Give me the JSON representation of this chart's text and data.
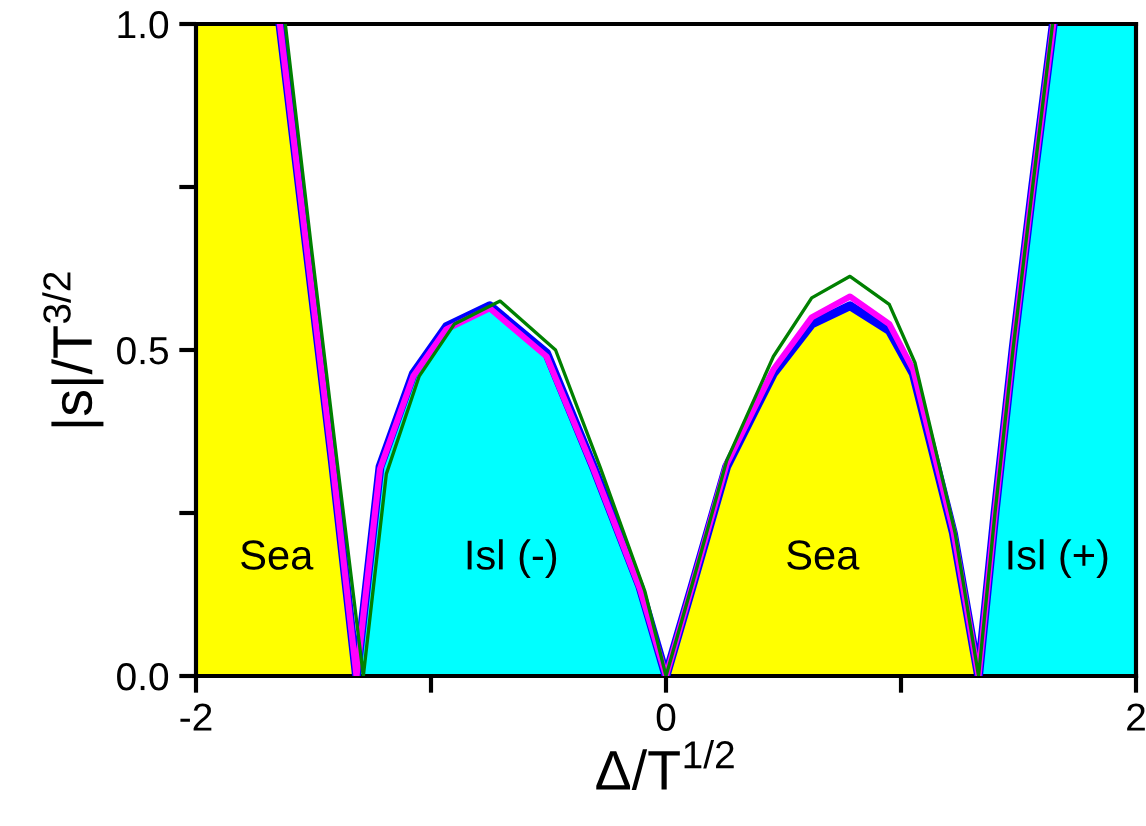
{
  "chart_data": {
    "type": "line",
    "xlabel": "Δ/T$^{1/2}$",
    "ylabel": "|s|/T$^{3/2}$",
    "xlim": [
      -2,
      2
    ],
    "ylim": [
      0,
      1
    ],
    "xticks": [
      -2,
      {
        "value": -1,
        "label": null
      },
      0,
      {
        "value": 1,
        "label": null
      },
      2
    ],
    "yticks": [
      {
        "value": 0,
        "label": "0.0"
      },
      {
        "value": 0.25,
        "label": null
      },
      {
        "value": 0.5,
        "label": "0.5"
      },
      {
        "value": 0.75,
        "label": null
      },
      {
        "value": 1,
        "label": "1.0"
      }
    ],
    "grid": false,
    "legend": false,
    "marker": "none",
    "line_style": "solid",
    "series": [
      {
        "type": "area",
        "name": "Sea",
        "color": "#ffff00",
        "x": [
          -2,
          -1.643,
          -1.53,
          -1.42,
          -1.317
        ],
        "values": [
          1,
          1,
          0.66,
          0.33,
          0
        ]
      },
      {
        "type": "area",
        "name": "Isl (-)",
        "color": "#00ffff",
        "x": [
          -1.317,
          -1.217,
          -1.075,
          -0.934,
          -0.75,
          -0.508,
          -0.309,
          -0.111,
          0
        ],
        "values": [
          0,
          0.321,
          0.464,
          0.536,
          0.568,
          0.495,
          0.321,
          0.137,
          0
        ]
      },
      {
        "type": "area",
        "name": "Sea",
        "color": "#ffff00",
        "x": [
          0,
          0.111,
          0.258,
          0.457,
          0.62,
          0.783,
          0.95,
          1.052,
          1.223,
          1.33
        ],
        "values": [
          0,
          0.137,
          0.321,
          0.464,
          0.54,
          0.568,
          0.53,
          0.464,
          0.219,
          0
        ]
      },
      {
        "type": "area",
        "name": "Isl (+)",
        "color": "#00ffff",
        "x": [
          1.33,
          1.4,
          1.478,
          1.56,
          1.648,
          2
        ],
        "values": [
          0,
          0.25,
          0.505,
          0.75,
          1,
          1
        ]
      },
      {
        "color": "#008000",
        "x": [
          -1.62,
          -1.51,
          -1.4,
          -1.288,
          -1.19,
          -1.05,
          -0.9,
          -0.706,
          -0.47,
          -0.28,
          -0.09,
          0,
          0.111,
          0.258,
          0.457,
          0.62,
          0.783,
          0.95,
          1.06,
          1.23,
          1.33,
          1.4,
          1.478,
          1.56,
          1.645
        ],
        "values": [
          1,
          0.66,
          0.33,
          0,
          0.31,
          0.46,
          0.54,
          0.575,
          0.5,
          0.32,
          0.13,
          0,
          0.14,
          0.33,
          0.49,
          0.58,
          0.613,
          0.57,
          0.48,
          0.22,
          0,
          0.25,
          0.505,
          0.75,
          1
        ]
      },
      {
        "color": "#ff00ff",
        "x": [
          -1.643,
          -1.53,
          -1.42,
          -1.317,
          -1.217,
          -1.075,
          -0.934,
          -0.75,
          -0.508,
          -0.309,
          -0.111,
          0,
          0.111,
          0.258,
          0.457,
          0.62,
          0.783,
          0.95,
          1.052,
          1.223,
          1.33,
          1.4,
          1.478,
          1.56,
          1.648
        ],
        "values": [
          1,
          0.66,
          0.33,
          0,
          0.318,
          0.46,
          0.532,
          0.564,
          0.49,
          0.318,
          0.134,
          0,
          0.138,
          0.325,
          0.47,
          0.55,
          0.582,
          0.54,
          0.47,
          0.222,
          0,
          0.25,
          0.505,
          0.75,
          1
        ]
      },
      {
        "color": "#0000ff",
        "x": [
          -1.643,
          -1.53,
          -1.42,
          -1.317,
          -1.217,
          -1.075,
          -0.934,
          -0.75,
          -0.508,
          -0.309,
          -0.111,
          0,
          0.111,
          0.258,
          0.457,
          0.62,
          0.783,
          0.95,
          1.052,
          1.223,
          1.33,
          1.4,
          1.478,
          1.56,
          1.648
        ],
        "values": [
          1,
          0.66,
          0.33,
          0,
          0.321,
          0.464,
          0.536,
          0.568,
          0.495,
          0.321,
          0.137,
          0,
          0.137,
          0.321,
          0.464,
          0.54,
          0.568,
          0.53,
          0.464,
          0.219,
          0,
          0.25,
          0.505,
          0.75,
          1
        ]
      }
    ]
  }
}
